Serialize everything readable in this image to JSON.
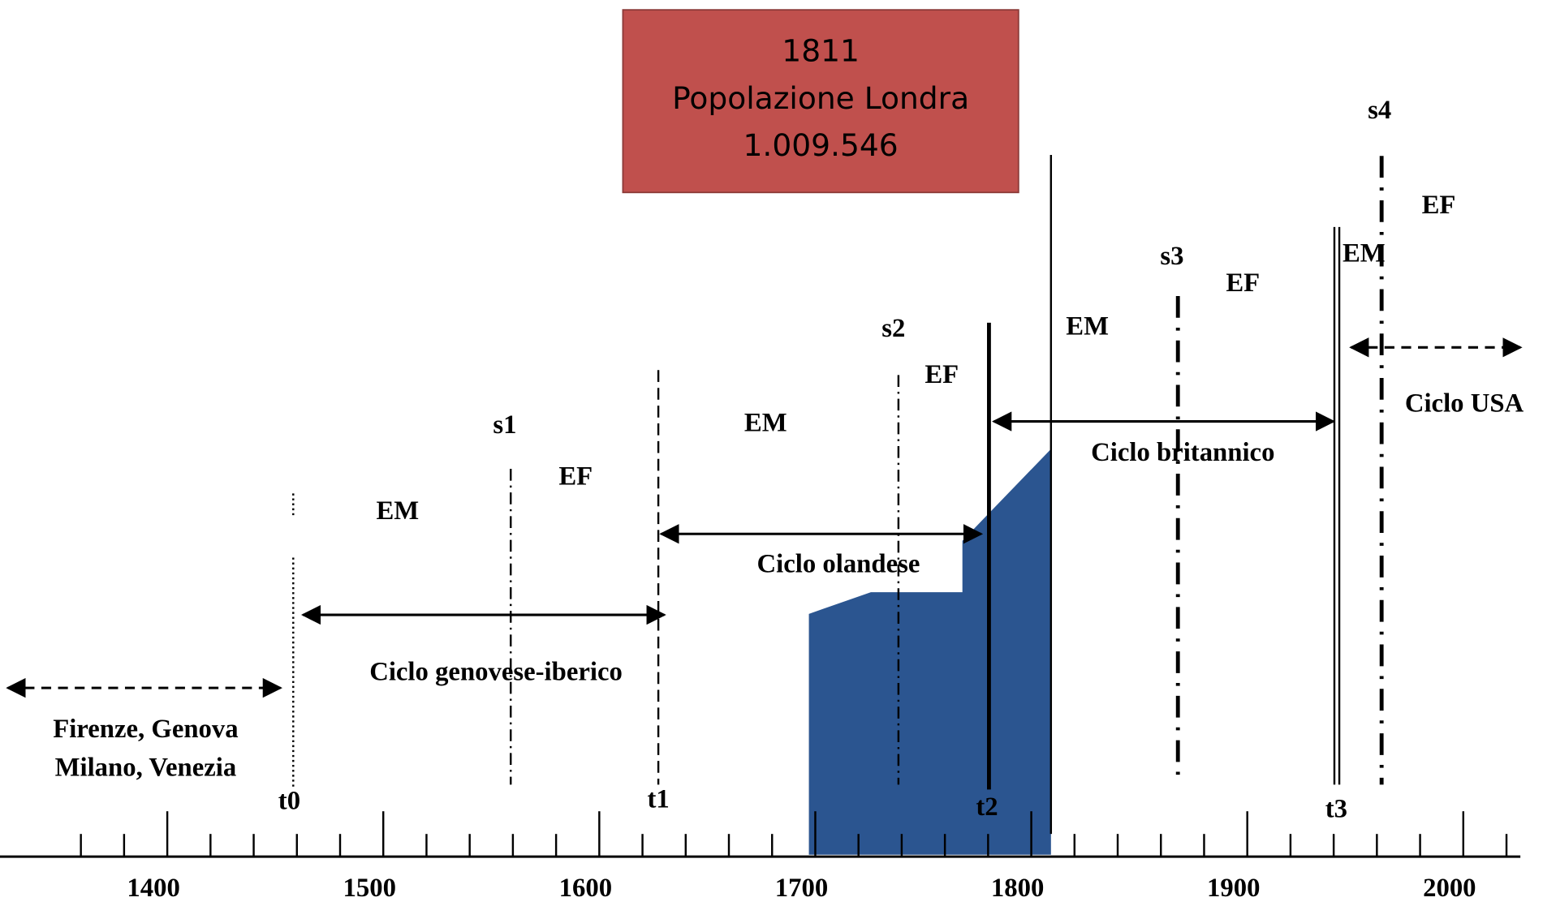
{
  "box": {
    "lines": [
      "1811",
      "Popolazione Londra",
      "1.009.546"
    ]
  },
  "axis": {
    "labels": [
      "1400",
      "1500",
      "1600",
      "1700",
      "1800",
      "1900",
      "2000"
    ]
  },
  "markers": {
    "t0": "t0",
    "t1": "t1",
    "t2": "t2",
    "t3": "t3",
    "s1": "s1",
    "s2": "s2",
    "s3": "s3",
    "s4": "s4"
  },
  "phases": [
    "EM",
    "EF",
    "EM",
    "EF",
    "EM",
    "EF",
    "EM",
    "EF"
  ],
  "cycles": {
    "pre": [
      "Firenze, Genova",
      "Milano, Venezia"
    ],
    "genovese": "Ciclo genovese-iberico",
    "olandese": "Ciclo olandese",
    "britannico": "Ciclo britannico",
    "usa": "Ciclo USA"
  }
}
